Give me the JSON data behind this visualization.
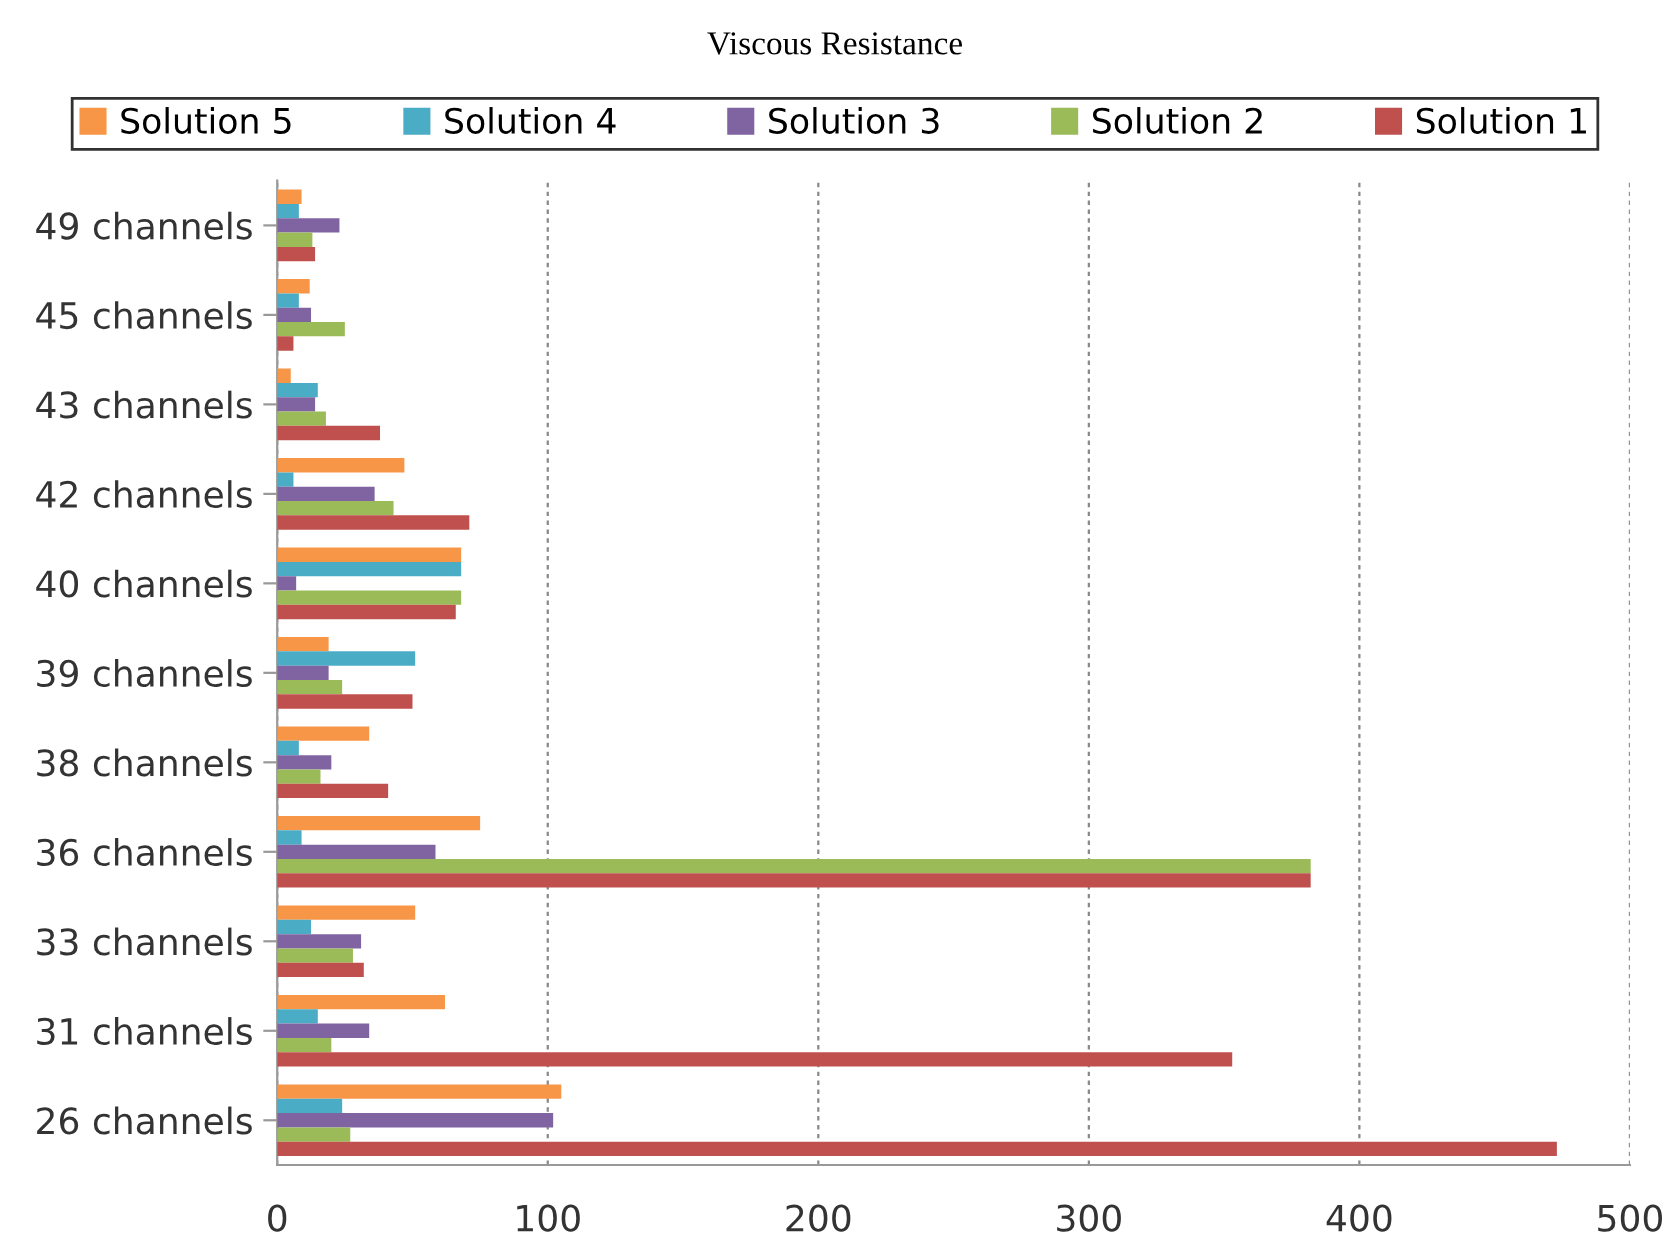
{
  "chart_data": {
    "type": "bar",
    "orientation": "horizontal",
    "title": "Viscous Resistance",
    "categories": [
      "49 channels",
      "45 channels",
      "43 channels",
      "42 channels",
      "40 channels",
      "39 channels",
      "38 channels",
      "36 channels",
      "33 channels",
      "31 channels",
      "26 channels"
    ],
    "series": [
      {
        "name": "Solution 5",
        "color": "#f79646",
        "values": [
          9,
          12,
          5,
          47,
          68,
          19,
          34,
          75,
          51,
          62,
          105
        ]
      },
      {
        "name": "Solution 4",
        "color": "#4bacc6",
        "values": [
          8,
          8,
          15,
          6,
          68,
          51,
          8,
          9,
          12.5,
          15,
          24
        ]
      },
      {
        "name": "Solution 3",
        "color": "#8064a2",
        "values": [
          23,
          12.5,
          14,
          36,
          7,
          19,
          20,
          58.5,
          31,
          34,
          102
        ]
      },
      {
        "name": "Solution 2",
        "color": "#9bbb59",
        "values": [
          13,
          25,
          18,
          43,
          68,
          24,
          16,
          382,
          28,
          20,
          27
        ]
      },
      {
        "name": "Solution 1",
        "color": "#c0504d",
        "values": [
          14,
          6,
          38,
          71,
          66,
          50,
          41,
          382,
          32,
          353,
          473
        ]
      }
    ],
    "xlim": [
      0,
      500
    ],
    "xticks": [
      0,
      100,
      200,
      300,
      400,
      500
    ],
    "grid": "x",
    "legend": "top"
  }
}
